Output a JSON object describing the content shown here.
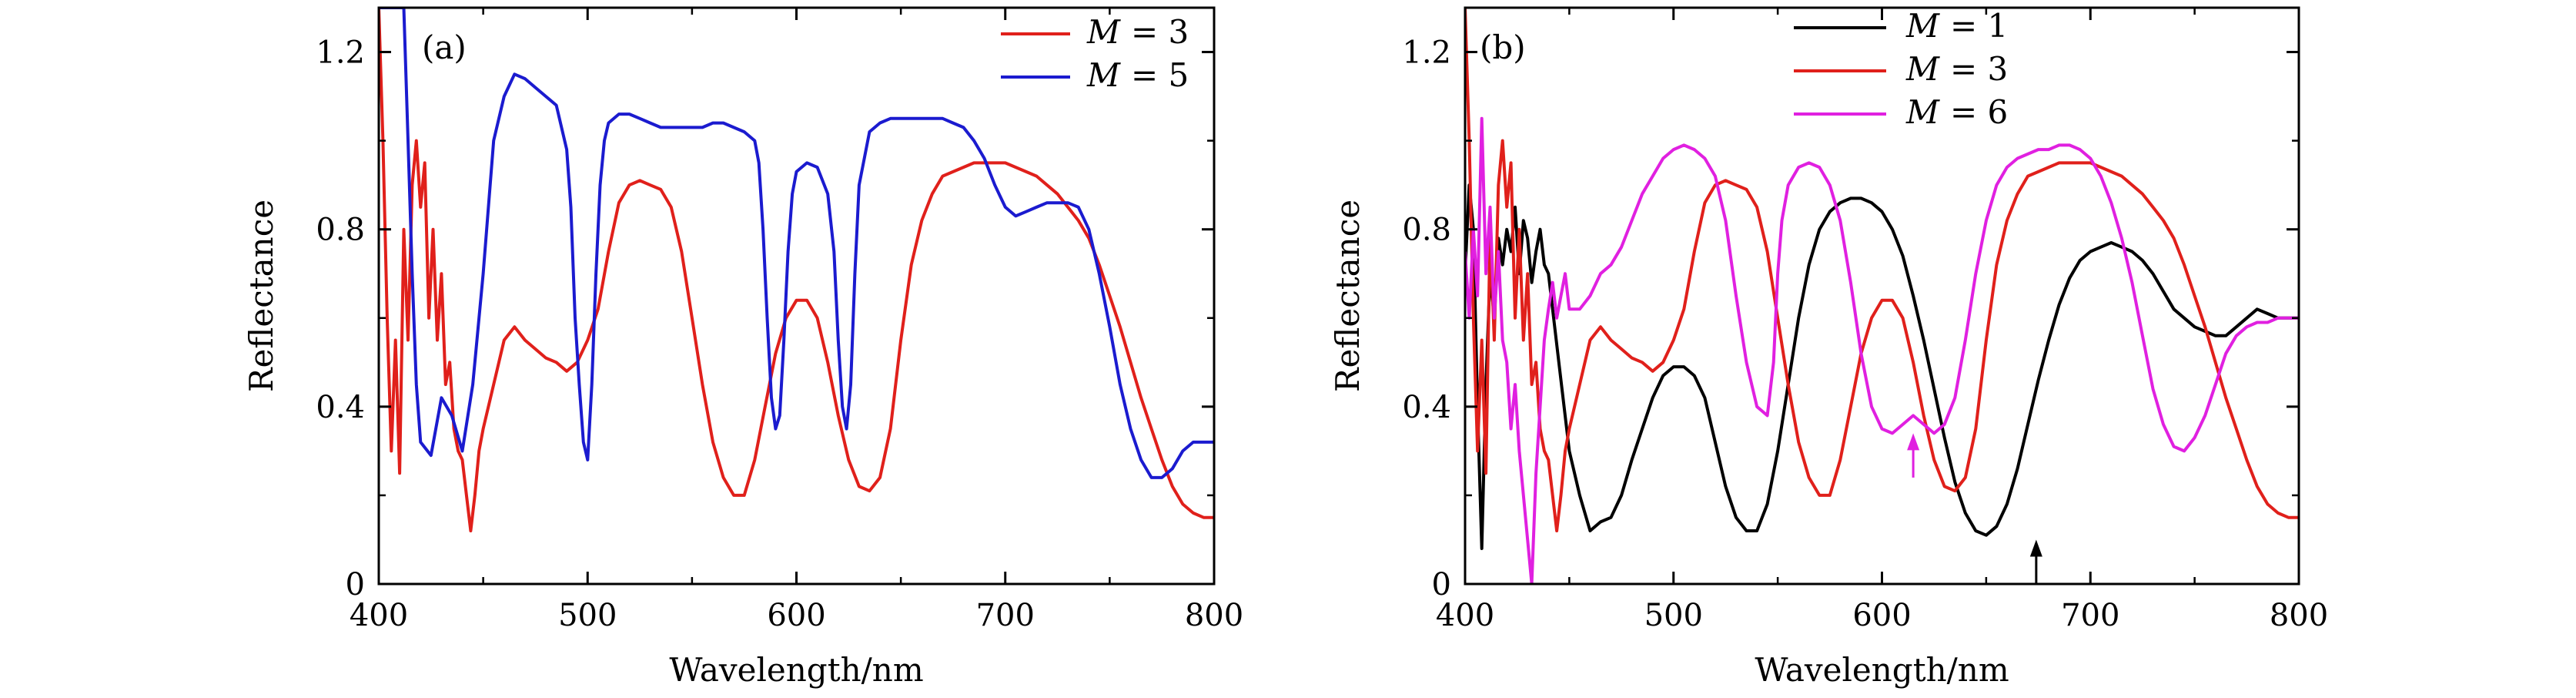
{
  "chart_data": [
    {
      "type": "line",
      "panel_label": "(a)",
      "xlabel": "Wavelength/nm",
      "ylabel": "Reflectance",
      "xlim": [
        400,
        800
      ],
      "ylim": [
        0,
        1.3
      ],
      "xticks": [
        400,
        500,
        600,
        700,
        800
      ],
      "yticks": [
        0,
        0.4,
        0.8,
        1.2
      ],
      "xtick_labels": [
        "400",
        "500",
        "600",
        "700",
        "800"
      ],
      "ytick_labels": [
        "0",
        "0.4",
        "0.8",
        "1.2"
      ],
      "grid": false,
      "legend_position": "top-right",
      "series": [
        {
          "name": "M = 3",
          "legend_symbol": "M",
          "legend_value": "= 3",
          "color": "#e0201b",
          "x": [
            400,
            402,
            404,
            406,
            408,
            410,
            412,
            414,
            416,
            418,
            420,
            422,
            424,
            426,
            428,
            430,
            432,
            434,
            436,
            438,
            440,
            442,
            444,
            446,
            448,
            450,
            455,
            460,
            465,
            470,
            475,
            480,
            485,
            490,
            495,
            500,
            505,
            510,
            515,
            520,
            525,
            530,
            535,
            540,
            545,
            550,
            555,
            560,
            565,
            570,
            575,
            580,
            585,
            590,
            595,
            600,
            605,
            610,
            615,
            620,
            625,
            630,
            635,
            640,
            645,
            650,
            655,
            660,
            665,
            670,
            675,
            680,
            685,
            690,
            695,
            700,
            705,
            710,
            715,
            720,
            725,
            730,
            735,
            740,
            745,
            750,
            755,
            760,
            765,
            770,
            775,
            780,
            785,
            790,
            795,
            800
          ],
          "y": [
            1.3,
            1.0,
            0.6,
            0.3,
            0.55,
            0.25,
            0.8,
            0.55,
            0.9,
            1.0,
            0.85,
            0.95,
            0.6,
            0.8,
            0.55,
            0.7,
            0.45,
            0.5,
            0.35,
            0.3,
            0.28,
            0.2,
            0.12,
            0.2,
            0.3,
            0.35,
            0.45,
            0.55,
            0.58,
            0.55,
            0.53,
            0.51,
            0.5,
            0.48,
            0.5,
            0.55,
            0.62,
            0.75,
            0.86,
            0.9,
            0.91,
            0.9,
            0.89,
            0.85,
            0.75,
            0.6,
            0.45,
            0.32,
            0.24,
            0.2,
            0.2,
            0.28,
            0.4,
            0.52,
            0.6,
            0.64,
            0.64,
            0.6,
            0.5,
            0.38,
            0.28,
            0.22,
            0.21,
            0.24,
            0.35,
            0.55,
            0.72,
            0.82,
            0.88,
            0.92,
            0.93,
            0.94,
            0.95,
            0.95,
            0.95,
            0.95,
            0.94,
            0.93,
            0.92,
            0.9,
            0.88,
            0.85,
            0.82,
            0.78,
            0.72,
            0.65,
            0.58,
            0.5,
            0.42,
            0.35,
            0.28,
            0.22,
            0.18,
            0.16,
            0.15,
            0.15
          ]
        },
        {
          "name": "M = 5",
          "legend_symbol": "M",
          "legend_value": "= 5",
          "color": "#1b1bcf",
          "x": [
            400,
            405,
            410,
            412,
            414,
            416,
            418,
            420,
            425,
            430,
            435,
            440,
            445,
            450,
            455,
            460,
            465,
            470,
            475,
            480,
            485,
            490,
            492,
            494,
            496,
            498,
            500,
            502,
            504,
            506,
            508,
            510,
            515,
            520,
            525,
            530,
            535,
            540,
            545,
            550,
            555,
            560,
            565,
            570,
            575,
            580,
            582,
            584,
            586,
            588,
            590,
            592,
            594,
            596,
            598,
            600,
            605,
            610,
            615,
            618,
            620,
            622,
            624,
            626,
            628,
            630,
            635,
            640,
            645,
            650,
            655,
            660,
            665,
            670,
            675,
            680,
            685,
            690,
            695,
            700,
            705,
            710,
            715,
            720,
            725,
            730,
            735,
            740,
            745,
            750,
            755,
            760,
            765,
            770,
            775,
            780,
            785,
            790,
            795,
            800
          ],
          "y": [
            1.3,
            1.3,
            1.3,
            1.3,
            1.0,
            0.7,
            0.45,
            0.32,
            0.29,
            0.42,
            0.38,
            0.3,
            0.45,
            0.7,
            1.0,
            1.1,
            1.15,
            1.14,
            1.12,
            1.1,
            1.08,
            0.98,
            0.85,
            0.6,
            0.45,
            0.32,
            0.28,
            0.45,
            0.7,
            0.9,
            1.0,
            1.04,
            1.06,
            1.06,
            1.05,
            1.04,
            1.03,
            1.03,
            1.03,
            1.03,
            1.03,
            1.04,
            1.04,
            1.03,
            1.02,
            1.0,
            0.95,
            0.8,
            0.6,
            0.42,
            0.35,
            0.38,
            0.55,
            0.75,
            0.88,
            0.93,
            0.95,
            0.94,
            0.88,
            0.75,
            0.55,
            0.4,
            0.35,
            0.45,
            0.7,
            0.9,
            1.02,
            1.04,
            1.05,
            1.05,
            1.05,
            1.05,
            1.05,
            1.05,
            1.04,
            1.03,
            1.0,
            0.96,
            0.9,
            0.85,
            0.83,
            0.84,
            0.85,
            0.86,
            0.86,
            0.86,
            0.85,
            0.8,
            0.7,
            0.58,
            0.45,
            0.35,
            0.28,
            0.24,
            0.24,
            0.26,
            0.3,
            0.32,
            0.32,
            0.32
          ]
        }
      ]
    },
    {
      "type": "line",
      "panel_label": "(b)",
      "xlabel": "Wavelength/nm",
      "ylabel": "Reflectance",
      "xlim": [
        400,
        800
      ],
      "ylim": [
        0,
        1.3
      ],
      "xticks": [
        400,
        500,
        600,
        700,
        800
      ],
      "yticks": [
        0,
        0.4,
        0.8,
        1.2
      ],
      "xtick_labels": [
        "400",
        "500",
        "600",
        "700",
        "800"
      ],
      "ytick_labels": [
        "0",
        "0.4",
        "0.8",
        "1.2"
      ],
      "grid": false,
      "legend_position": "top-center",
      "annotations": [
        {
          "type": "arrow",
          "x": 615,
          "y_from": 0.24,
          "y_to": 0.34,
          "color": "#e020e0"
        },
        {
          "type": "arrow",
          "x": 674,
          "y_from": 0.0,
          "y_to": 0.1,
          "color": "#000000"
        }
      ],
      "series": [
        {
          "name": "M = 1",
          "legend_symbol": "M",
          "legend_value": "= 1",
          "color": "#000000",
          "x": [
            400,
            402,
            404,
            406,
            408,
            410,
            412,
            414,
            416,
            418,
            420,
            422,
            424,
            426,
            428,
            430,
            432,
            434,
            436,
            438,
            440,
            445,
            450,
            455,
            460,
            465,
            470,
            475,
            480,
            485,
            490,
            495,
            500,
            505,
            510,
            515,
            520,
            525,
            530,
            535,
            540,
            545,
            550,
            555,
            560,
            565,
            570,
            575,
            580,
            585,
            590,
            595,
            600,
            605,
            610,
            615,
            620,
            625,
            630,
            635,
            640,
            645,
            650,
            655,
            660,
            665,
            670,
            675,
            680,
            685,
            690,
            695,
            700,
            705,
            710,
            715,
            720,
            725,
            730,
            735,
            740,
            745,
            750,
            755,
            760,
            765,
            770,
            775,
            780,
            785,
            790,
            795,
            800
          ],
          "y": [
            0.7,
            0.9,
            0.8,
            0.4,
            0.08,
            0.45,
            0.7,
            0.6,
            0.78,
            0.72,
            0.8,
            0.75,
            0.85,
            0.7,
            0.82,
            0.78,
            0.68,
            0.75,
            0.8,
            0.72,
            0.7,
            0.5,
            0.3,
            0.2,
            0.12,
            0.14,
            0.15,
            0.2,
            0.28,
            0.35,
            0.42,
            0.47,
            0.49,
            0.49,
            0.47,
            0.42,
            0.32,
            0.22,
            0.15,
            0.12,
            0.12,
            0.18,
            0.3,
            0.45,
            0.6,
            0.72,
            0.8,
            0.84,
            0.86,
            0.87,
            0.87,
            0.86,
            0.84,
            0.8,
            0.74,
            0.65,
            0.55,
            0.44,
            0.33,
            0.23,
            0.16,
            0.12,
            0.11,
            0.13,
            0.18,
            0.26,
            0.36,
            0.46,
            0.55,
            0.63,
            0.69,
            0.73,
            0.75,
            0.76,
            0.77,
            0.76,
            0.75,
            0.73,
            0.7,
            0.66,
            0.62,
            0.6,
            0.58,
            0.57,
            0.56,
            0.56,
            0.58,
            0.6,
            0.62,
            0.61,
            0.6,
            0.6,
            0.6
          ]
        },
        {
          "name": "M = 3",
          "legend_symbol": "M",
          "legend_value": "= 3",
          "color": "#e0201b",
          "x": [
            400,
            402,
            404,
            406,
            408,
            410,
            412,
            414,
            416,
            418,
            420,
            422,
            424,
            426,
            428,
            430,
            432,
            434,
            436,
            438,
            440,
            442,
            444,
            446,
            448,
            450,
            455,
            460,
            465,
            470,
            475,
            480,
            485,
            490,
            495,
            500,
            505,
            510,
            515,
            520,
            525,
            530,
            535,
            540,
            545,
            550,
            555,
            560,
            565,
            570,
            575,
            580,
            585,
            590,
            595,
            600,
            605,
            610,
            615,
            620,
            625,
            630,
            635,
            640,
            645,
            650,
            655,
            660,
            665,
            670,
            675,
            680,
            685,
            690,
            695,
            700,
            705,
            710,
            715,
            720,
            725,
            730,
            735,
            740,
            745,
            750,
            755,
            760,
            765,
            770,
            775,
            780,
            785,
            790,
            795,
            800
          ],
          "y": [
            1.3,
            1.0,
            0.6,
            0.3,
            0.55,
            0.25,
            0.8,
            0.55,
            0.9,
            1.0,
            0.85,
            0.95,
            0.6,
            0.8,
            0.55,
            0.7,
            0.45,
            0.5,
            0.35,
            0.3,
            0.28,
            0.2,
            0.12,
            0.2,
            0.3,
            0.35,
            0.45,
            0.55,
            0.58,
            0.55,
            0.53,
            0.51,
            0.5,
            0.48,
            0.5,
            0.55,
            0.62,
            0.75,
            0.86,
            0.9,
            0.91,
            0.9,
            0.89,
            0.85,
            0.75,
            0.6,
            0.45,
            0.32,
            0.24,
            0.2,
            0.2,
            0.28,
            0.4,
            0.52,
            0.6,
            0.64,
            0.64,
            0.6,
            0.5,
            0.38,
            0.28,
            0.22,
            0.21,
            0.24,
            0.35,
            0.55,
            0.72,
            0.82,
            0.88,
            0.92,
            0.93,
            0.94,
            0.95,
            0.95,
            0.95,
            0.95,
            0.94,
            0.93,
            0.92,
            0.9,
            0.88,
            0.85,
            0.82,
            0.78,
            0.72,
            0.65,
            0.58,
            0.5,
            0.42,
            0.35,
            0.28,
            0.22,
            0.18,
            0.16,
            0.15,
            0.15
          ]
        },
        {
          "name": "M = 6",
          "legend_symbol": "M",
          "legend_value": "= 6",
          "color": "#e020e0",
          "x": [
            400,
            402,
            404,
            406,
            408,
            410,
            412,
            414,
            416,
            418,
            420,
            422,
            424,
            426,
            428,
            430,
            432,
            434,
            436,
            438,
            440,
            442,
            444,
            446,
            448,
            450,
            455,
            460,
            465,
            470,
            475,
            480,
            485,
            490,
            495,
            500,
            505,
            510,
            515,
            520,
            525,
            530,
            535,
            540,
            545,
            548,
            550,
            552,
            555,
            560,
            565,
            570,
            575,
            580,
            585,
            590,
            595,
            600,
            605,
            610,
            615,
            620,
            625,
            630,
            635,
            640,
            645,
            650,
            655,
            660,
            665,
            670,
            675,
            680,
            685,
            690,
            695,
            700,
            705,
            710,
            715,
            720,
            725,
            730,
            735,
            740,
            745,
            750,
            755,
            760,
            765,
            770,
            775,
            780,
            785,
            790,
            795,
            800
          ],
          "y": [
            0.75,
            0.6,
            0.8,
            0.65,
            1.05,
            0.7,
            0.85,
            0.6,
            0.75,
            0.55,
            0.5,
            0.35,
            0.45,
            0.3,
            0.2,
            0.1,
            0.0,
            0.25,
            0.4,
            0.55,
            0.62,
            0.68,
            0.6,
            0.65,
            0.7,
            0.62,
            0.62,
            0.65,
            0.7,
            0.72,
            0.76,
            0.82,
            0.88,
            0.92,
            0.96,
            0.98,
            0.99,
            0.98,
            0.96,
            0.92,
            0.82,
            0.65,
            0.5,
            0.4,
            0.38,
            0.5,
            0.7,
            0.82,
            0.9,
            0.94,
            0.95,
            0.94,
            0.9,
            0.82,
            0.68,
            0.52,
            0.4,
            0.35,
            0.34,
            0.36,
            0.38,
            0.36,
            0.34,
            0.36,
            0.42,
            0.55,
            0.7,
            0.82,
            0.9,
            0.94,
            0.96,
            0.97,
            0.98,
            0.98,
            0.99,
            0.99,
            0.98,
            0.96,
            0.92,
            0.86,
            0.78,
            0.68,
            0.56,
            0.44,
            0.36,
            0.31,
            0.3,
            0.33,
            0.38,
            0.45,
            0.52,
            0.56,
            0.58,
            0.59,
            0.59,
            0.6,
            0.6,
            0.6
          ]
        }
      ]
    }
  ]
}
